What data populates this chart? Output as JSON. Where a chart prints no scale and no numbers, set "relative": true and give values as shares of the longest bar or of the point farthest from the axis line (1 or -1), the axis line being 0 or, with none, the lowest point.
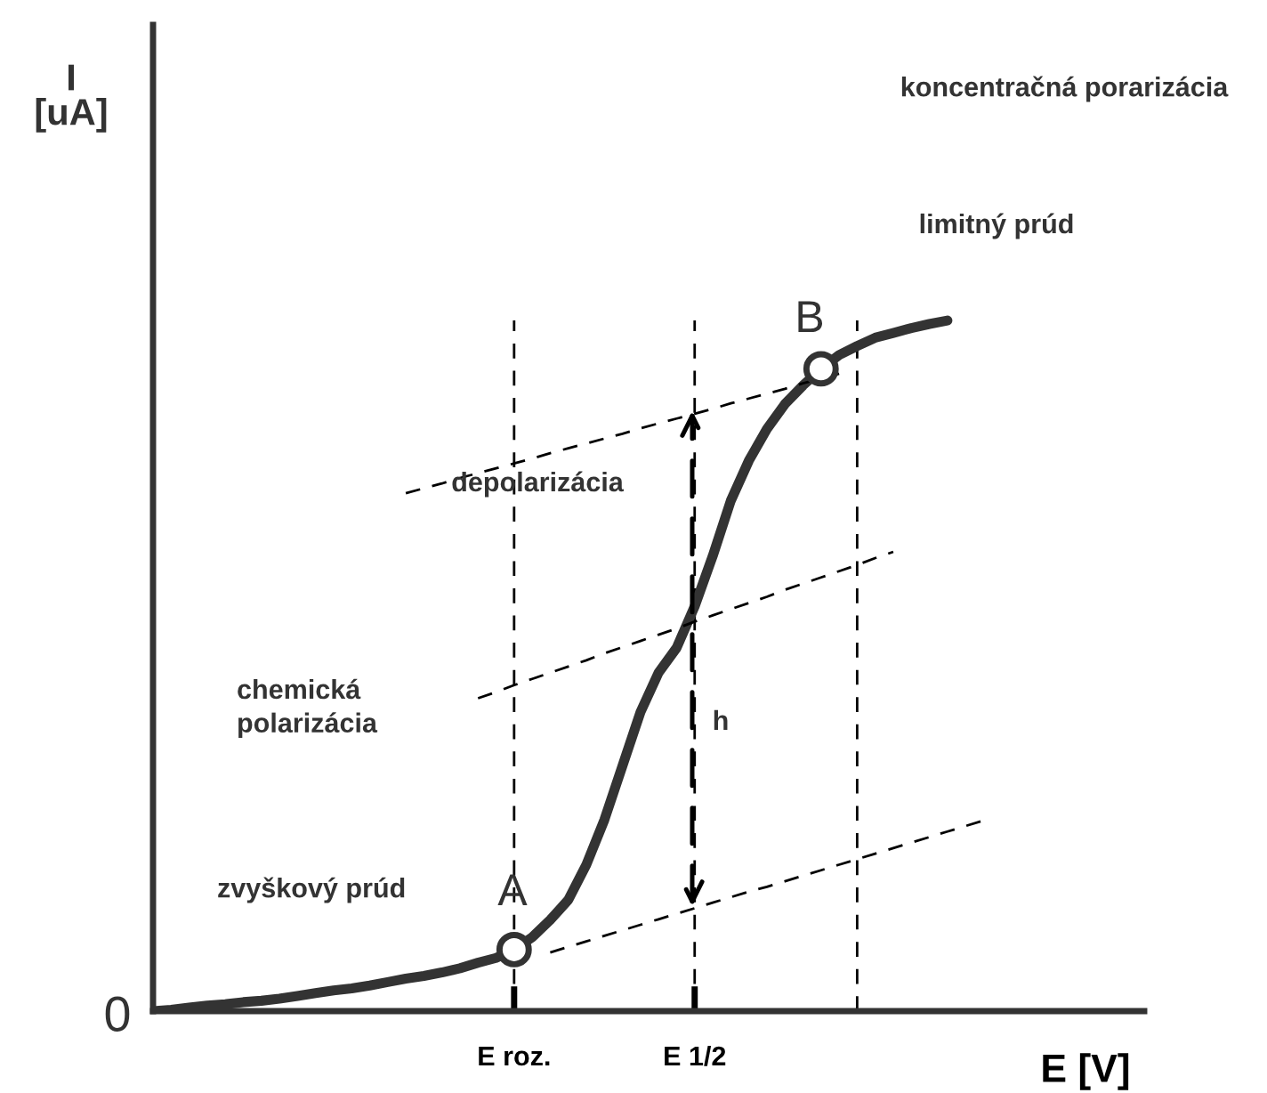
{
  "chart_data": {
    "type": "line",
    "relative": true,
    "xlabel": "E [V]",
    "categories": [
      null,
      null,
      null,
      null,
      null,
      null,
      null,
      null,
      null,
      null,
      null,
      null,
      null,
      null,
      null,
      null,
      null,
      null,
      null,
      null,
      "E roz.",
      null,
      null,
      null,
      null,
      null,
      null,
      null,
      null,
      null,
      "E 1/2",
      null,
      null,
      null,
      null,
      null,
      null,
      null,
      null,
      null,
      null,
      null,
      null,
      null,
      null,
      null,
      null
    ],
    "tick_labels": "x",
    "grid": "x",
    "series": [
      {
        "color": "#333333",
        "line_style": "solid",
        "values": [
          0,
          0.002,
          0.005,
          0.008,
          0.01,
          0.013,
          0.015,
          0.018,
          0.022,
          0.026,
          0.03,
          0.033,
          0.037,
          0.042,
          0.047,
          0.051,
          0.056,
          0.062,
          0.07,
          0.077,
          0.089,
          0.107,
          0.132,
          0.161,
          0.212,
          0.277,
          0.355,
          0.433,
          0.49,
          0.526,
          0.586,
          0.659,
          0.739,
          0.797,
          0.843,
          0.879,
          0.906,
          0.93,
          0.95,
          0.963,
          0.975,
          0.982,
          0.989,
          0.995,
          1,
          null,
          null
        ]
      },
      {
        "color": "#000000",
        "line_style": "dashed",
        "values": [
          null,
          null,
          null,
          null,
          null,
          null,
          null,
          null,
          null,
          null,
          null,
          null,
          null,
          null,
          0.75,
          0.757,
          0.764,
          0.772,
          0.779,
          0.786,
          0.793,
          0.8,
          0.808,
          0.815,
          0.822,
          0.829,
          0.836,
          0.844,
          0.851,
          0.858,
          0.865,
          0.872,
          0.88,
          0.887,
          0.894,
          0.901,
          0.909,
          0.916,
          0.923,
          null,
          null,
          null,
          null,
          null,
          null,
          null,
          null
        ]
      },
      {
        "color": "#000000",
        "line_style": "dashed",
        "values": [
          null,
          null,
          null,
          null,
          null,
          null,
          null,
          null,
          null,
          null,
          null,
          null,
          null,
          null,
          null,
          null,
          null,
          null,
          0.453,
          0.462,
          0.472,
          0.481,
          0.49,
          0.499,
          0.508,
          0.518,
          0.527,
          0.536,
          0.545,
          0.554,
          0.564,
          0.573,
          0.582,
          0.591,
          0.6,
          0.61,
          0.619,
          0.628,
          0.637,
          0.646,
          0.656,
          0.665,
          null,
          null,
          null,
          null,
          null
        ]
      },
      {
        "color": "#000000",
        "line_style": "dashed",
        "values": [
          null,
          null,
          null,
          null,
          null,
          null,
          null,
          null,
          null,
          null,
          null,
          null,
          null,
          null,
          null,
          null,
          null,
          null,
          null,
          null,
          null,
          null,
          0.085,
          0.093,
          0.101,
          0.109,
          0.117,
          0.125,
          0.133,
          0.141,
          0.149,
          0.157,
          0.165,
          0.173,
          0.18,
          0.188,
          0.196,
          0.204,
          0.212,
          0.22,
          0.228,
          0.236,
          0.244,
          0.252,
          0.26,
          0.268,
          0.276
        ]
      },
      {
        "type": "scatter",
        "color": "#333333",
        "marker": "circle",
        "values": [
          null,
          null,
          null,
          null,
          null,
          null,
          null,
          null,
          null,
          null,
          null,
          null,
          null,
          null,
          null,
          null,
          null,
          null,
          null,
          null,
          0.089,
          null,
          null,
          null,
          null,
          null,
          null,
          null,
          null,
          null,
          null,
          null,
          null,
          null,
          null,
          null,
          null,
          0.93,
          null,
          null,
          null,
          null,
          null,
          null,
          null,
          null,
          null
        ]
      }
    ],
    "annotations": [
      "I\n[uA]",
      "koncentračná porarizácia",
      "limitný prúd",
      "depolarizácia",
      "chemická\npolarizácia",
      "zvyškový prúd",
      "h",
      "A",
      "B",
      "0"
    ]
  }
}
